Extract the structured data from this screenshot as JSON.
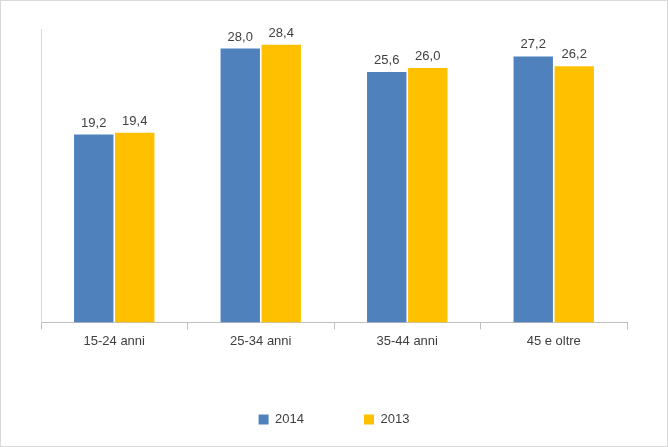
{
  "chart_data": {
    "type": "bar",
    "categories": [
      "15-24 anni",
      "25-34 anni",
      "35-44 anni",
      "45 e oltre"
    ],
    "series": [
      {
        "name": "2014",
        "color": "#4f81bd",
        "values": [
          19.2,
          28.0,
          25.6,
          27.2
        ],
        "value_labels": [
          "19,2",
          "28,0",
          "25,6",
          "27,2"
        ]
      },
      {
        "name": "2013",
        "color": "#ffc000",
        "values": [
          19.4,
          28.4,
          26.0,
          26.2
        ],
        "value_labels": [
          "19,4",
          "28,4",
          "26,0",
          "26,2"
        ]
      }
    ],
    "ylim": [
      0,
      30
    ],
    "data_labels": true,
    "legend": "bottom",
    "grid": false,
    "tick_labels": "x"
  }
}
